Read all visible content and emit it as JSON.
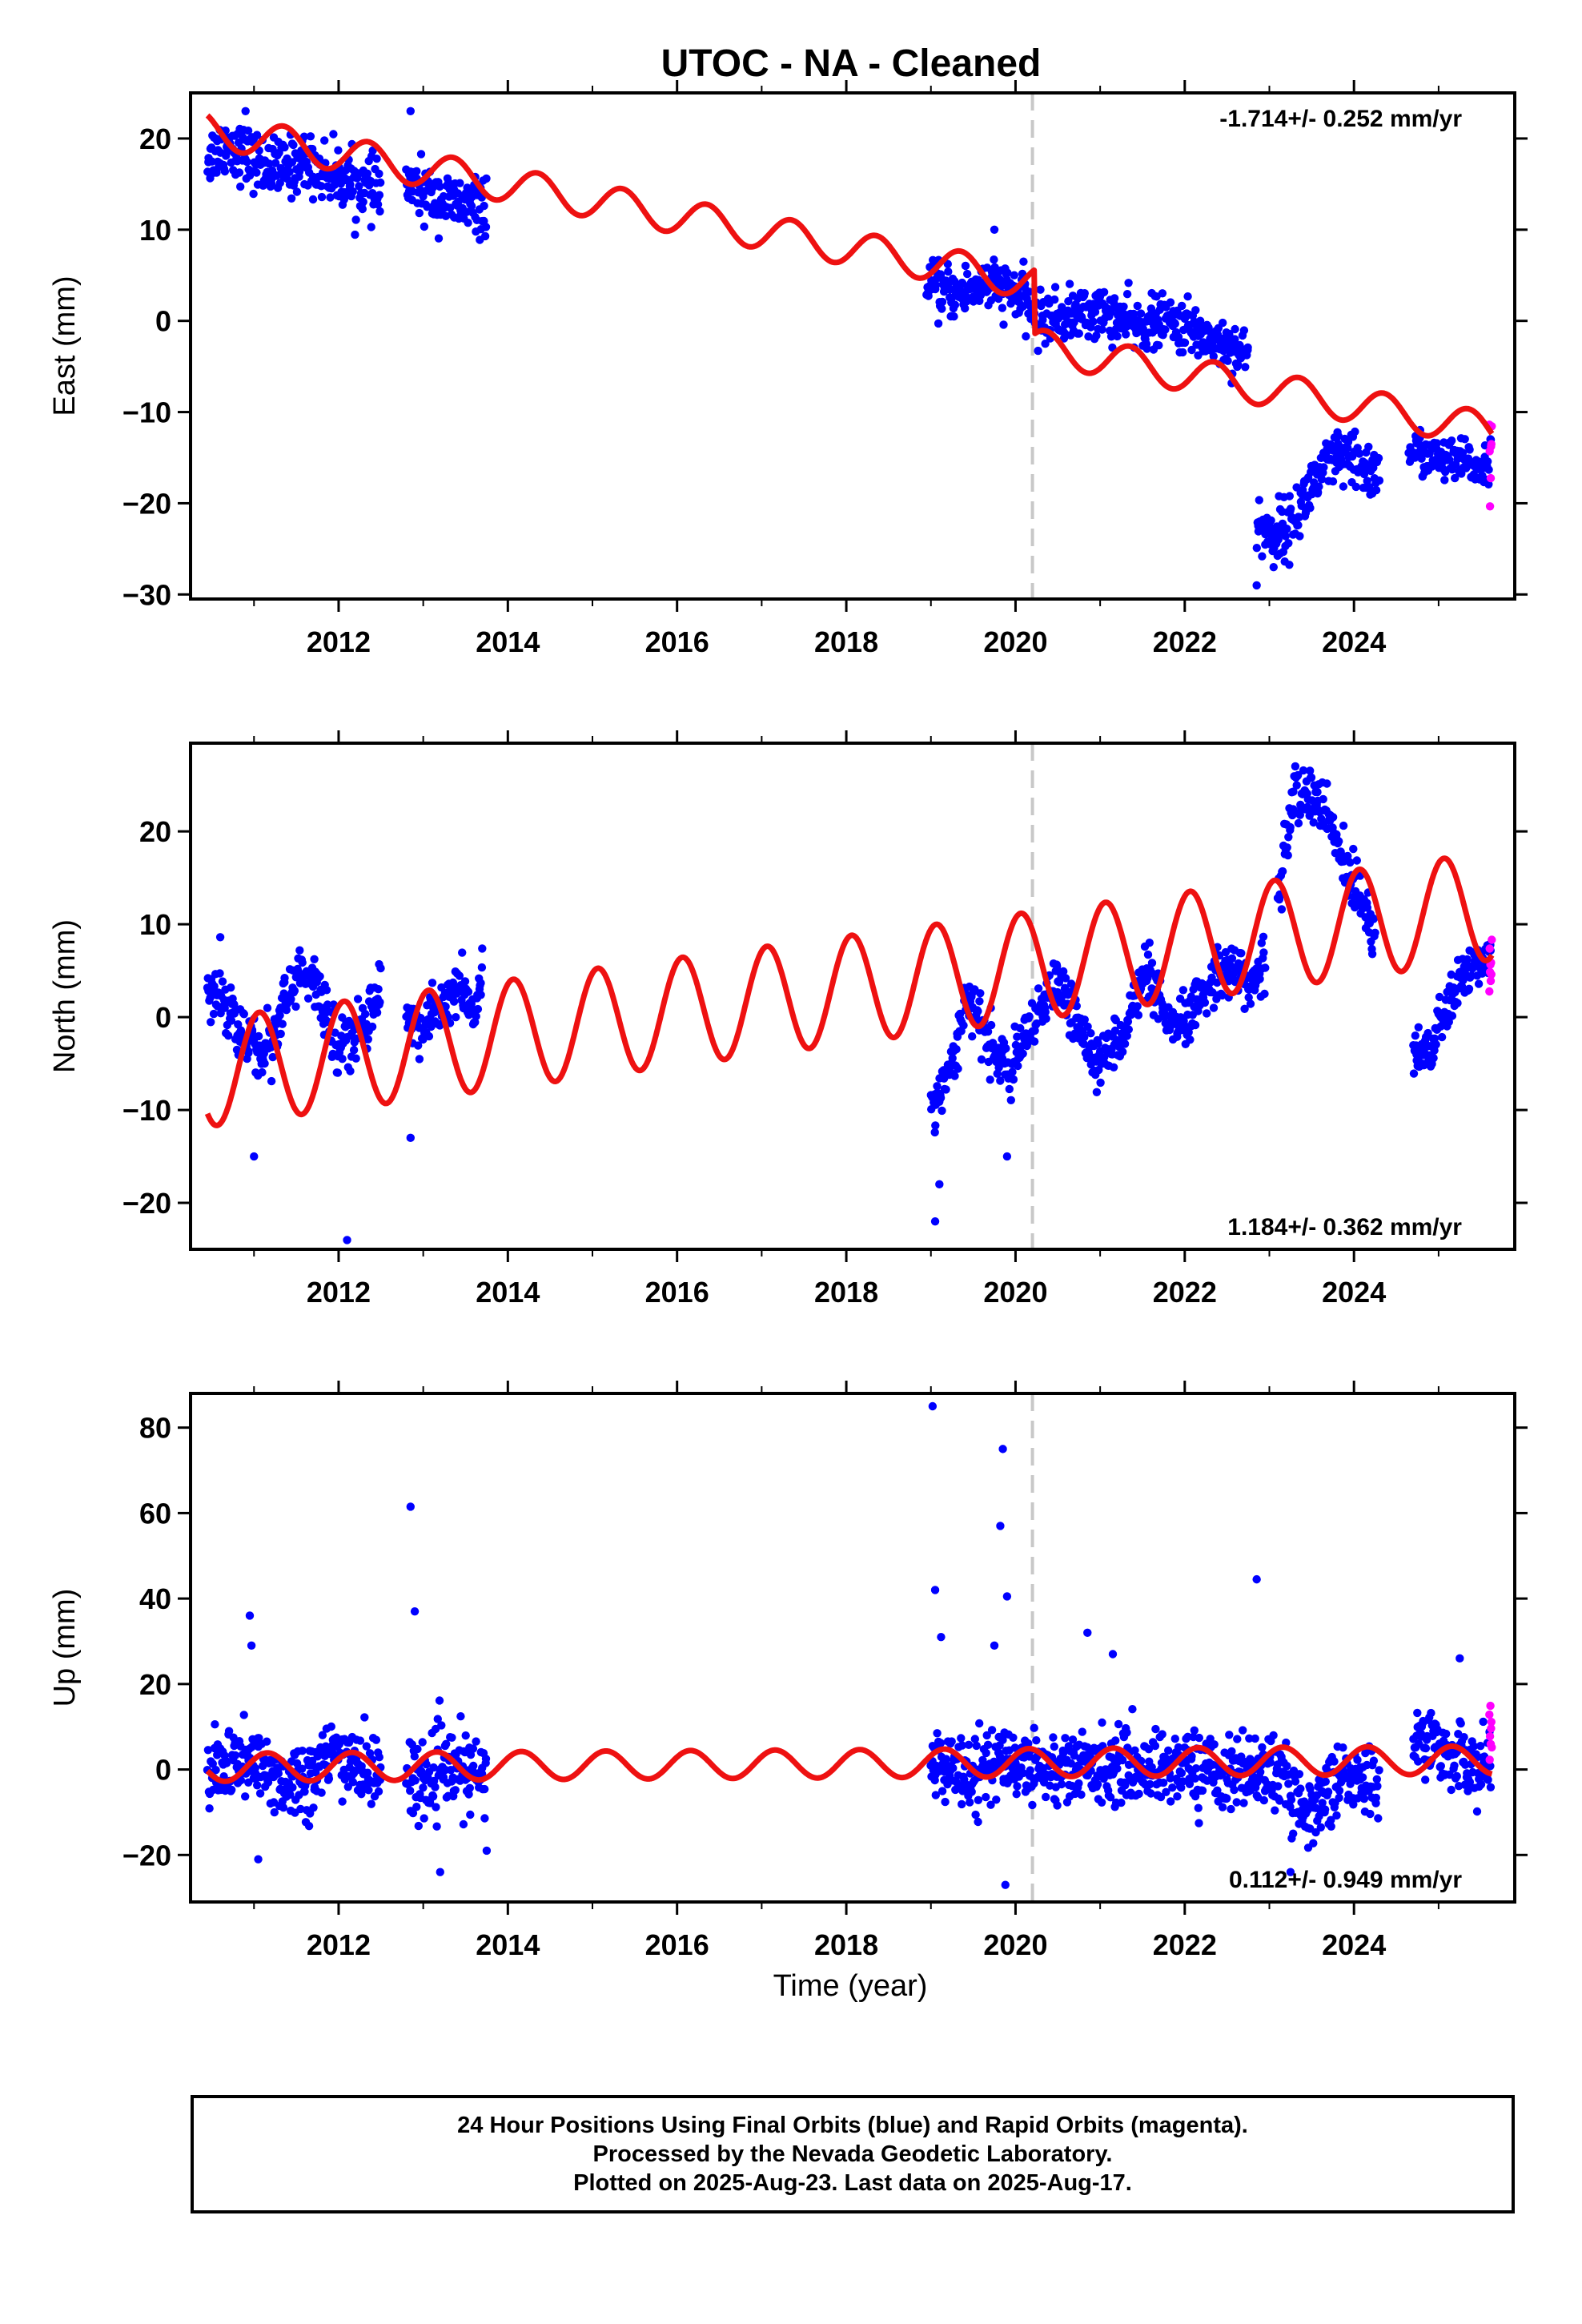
{
  "title": "UTOC  - NA - Cleaned",
  "xlabel": "Time (year)",
  "colors": {
    "final": "#0000ff",
    "rapid": "#ff00ff",
    "model": "#ee1111",
    "event_line": "#c8c8c8",
    "frame": "#000000"
  },
  "chart_data": [
    {
      "type": "scatter",
      "name": "east",
      "ylabel": "East (mm)",
      "rate": "-1.714+/- 0.252 mm/yr",
      "rate_position": "top-right",
      "xlim": [
        2010.25,
        2025.9
      ],
      "ylim": [
        -30.5,
        25
      ],
      "xticks": [
        2012,
        2014,
        2016,
        2018,
        2020,
        2022,
        2024
      ],
      "yticks": [
        -30,
        -20,
        -10,
        0,
        10,
        20
      ],
      "event_lines": [
        2020.2
      ],
      "final_segments": [
        {
          "x": [
            2010.45,
            2010.7,
            2011.0,
            2011.3,
            2011.6,
            2011.9,
            2012.2,
            2012.5
          ],
          "y": [
            18,
            19.5,
            17.5,
            16.5,
            17.5,
            16,
            15,
            14
          ],
          "spread": 1.6
        },
        {
          "x": [
            2012.8,
            2013.0,
            2013.3,
            2013.6,
            2013.75
          ],
          "y": [
            15,
            14,
            13,
            12.5,
            12.5
          ],
          "spread": 1.5
        },
        {
          "x": [
            2018.95,
            2019.3,
            2019.6,
            2019.9,
            2020.2
          ],
          "y": [
            3.5,
            3,
            4,
            3.5,
            1.5
          ],
          "spread": 1.4
        },
        {
          "x": [
            2020.22,
            2020.6,
            2021.0,
            2021.4,
            2021.8,
            2022.2,
            2022.6,
            2022.75
          ],
          "y": [
            0,
            0.5,
            1,
            -0.5,
            0,
            -1.5,
            -3,
            -4
          ],
          "spread": 1.4
        },
        {
          "x": [
            2022.85,
            2023.0,
            2023.25,
            2023.5,
            2023.8,
            2024.1,
            2024.3
          ],
          "y": [
            -22,
            -23.5,
            -22.5,
            -18,
            -15,
            -16,
            -17
          ],
          "spread": 1.6
        },
        {
          "x": [
            2024.65,
            2024.9,
            2025.2,
            2025.5,
            2025.62
          ],
          "y": [
            -14,
            -15,
            -15.5,
            -16,
            -15
          ],
          "spread": 1.2
        }
      ],
      "rapid": {
        "x": [
          2025.6,
          2025.63
        ],
        "y": [
          -15.5,
          -14
        ],
        "spread": 2.0
      },
      "model": {
        "offset": 21.0,
        "rate": -1.714,
        "t0": 2010.45,
        "amp": 1.9,
        "phase": 2.2,
        "steps": [
          {
            "x": 2020.22,
            "dy": -7
          }
        ]
      },
      "outliers": {
        "x": [
          2010.9,
          2012.85,
          2019.75,
          2022.85,
          2023.05
        ],
        "y": [
          23,
          23,
          10,
          -29,
          -27
        ]
      }
    },
    {
      "type": "scatter",
      "name": "north",
      "ylabel": "North (mm)",
      "rate": "1.184+/- 0.362 mm/yr",
      "rate_position": "bottom-right",
      "xlim": [
        2010.25,
        2025.9
      ],
      "ylim": [
        -25,
        29.5
      ],
      "xticks": [
        2012,
        2014,
        2016,
        2018,
        2020,
        2022,
        2024
      ],
      "yticks": [
        -20,
        -10,
        0,
        10,
        20
      ],
      "event_lines": [
        2020.2
      ],
      "final_segments": [
        {
          "x": [
            2010.45,
            2010.6,
            2010.85,
            2011.1,
            2011.3,
            2011.55,
            2011.8,
            2012.0,
            2012.2,
            2012.4,
            2012.5
          ],
          "y": [
            3,
            3,
            -2,
            -4,
            0,
            5,
            2,
            -3,
            -2,
            1,
            4
          ],
          "spread": 1.6
        },
        {
          "x": [
            2012.8,
            2013.0,
            2013.2,
            2013.4,
            2013.6,
            2013.7
          ],
          "y": [
            0,
            -1.5,
            1,
            3,
            0.5,
            4
          ],
          "spread": 1.4
        },
        {
          "x": [
            2019.0,
            2019.2,
            2019.45,
            2019.7,
            2019.95,
            2020.2
          ],
          "y": [
            -10,
            -6,
            2,
            -3,
            -6,
            -1
          ],
          "spread": 1.4
        },
        {
          "x": [
            2020.22,
            2020.5,
            2020.75,
            2021.0,
            2021.3,
            2021.55,
            2021.8,
            2022.0,
            2022.3,
            2022.55,
            2022.75,
            2022.95
          ],
          "y": [
            -1,
            4,
            -1,
            -5,
            -1,
            5,
            -1,
            -1,
            4,
            6,
            3,
            6
          ],
          "spread": 1.4
        },
        {
          "x": [
            2023.1,
            2023.3,
            2023.5,
            2023.7,
            2023.9,
            2024.1,
            2024.25
          ],
          "y": [
            13,
            24,
            24,
            21,
            16,
            13,
            9
          ],
          "spread": 1.6
        },
        {
          "x": [
            2024.7,
            2024.9,
            2025.1,
            2025.35,
            2025.62
          ],
          "y": [
            -3,
            -4,
            1,
            5,
            7
          ],
          "spread": 1.3
        }
      ],
      "rapid": {
        "x": [
          2025.6,
          2025.63
        ],
        "y": [
          4,
          6
        ],
        "spread": 2.0
      },
      "model": {
        "offset": -6.0,
        "rate": 1.184,
        "t0": 2010.45,
        "amp": 5.8,
        "phase": 4.0,
        "steps": []
      },
      "outliers": {
        "x": [
          2011.0,
          2012.1,
          2012.85,
          2019.05,
          2019.1,
          2019.9
        ],
        "y": [
          -15,
          -24,
          -13,
          -22,
          -18,
          -15
        ]
      }
    },
    {
      "type": "scatter",
      "name": "up",
      "ylabel": "Up (mm)",
      "rate": "0.112+/- 0.949 mm/yr",
      "rate_position": "bottom-right",
      "xlim": [
        2010.25,
        2025.9
      ],
      "ylim": [
        -31,
        88
      ],
      "xticks": [
        2012,
        2014,
        2016,
        2018,
        2020,
        2022,
        2024
      ],
      "yticks": [
        -20,
        0,
        20,
        40,
        60,
        80
      ],
      "event_lines": [
        2020.2
      ],
      "final_segments": [
        {
          "x": [
            2010.45,
            2010.8,
            2011.1,
            2011.4,
            2011.7,
            2012.0,
            2012.3,
            2012.5
          ],
          "y": [
            -2,
            2,
            0,
            -3,
            -1,
            4,
            0,
            -2
          ],
          "spread": 4.5
        },
        {
          "x": [
            2012.8,
            2013.0,
            2013.3,
            2013.75
          ],
          "y": [
            0,
            -3,
            0,
            -2
          ],
          "spread": 4.5
        },
        {
          "x": [
            2019.0,
            2019.5,
            2020.0,
            2020.5,
            2021.0,
            2021.5,
            2022.0,
            2022.5,
            2023.0,
            2023.3,
            2023.5,
            2023.8,
            2024.1,
            2024.3
          ],
          "y": [
            1,
            0,
            2,
            0,
            1,
            0,
            1,
            -1,
            0,
            -6,
            -10,
            -2,
            -3,
            -3
          ],
          "spread": 4.2
        },
        {
          "x": [
            2024.7,
            2025.0,
            2025.3,
            2025.62
          ],
          "y": [
            8,
            5,
            2,
            0
          ],
          "spread": 3.8
        }
      ],
      "rapid": {
        "x": [
          2025.6,
          2025.63
        ],
        "y": [
          4,
          8
        ],
        "spread": 4.0
      },
      "model": {
        "offset": 0.5,
        "rate": 0.112,
        "t0": 2010.45,
        "amp": 3.3,
        "phase": 3.4,
        "steps": []
      },
      "outliers": {
        "x": [
          2010.95,
          2010.97,
          2011.05,
          2012.85,
          2012.9,
          2013.2,
          2013.75,
          2019.02,
          2019.05,
          2019.12,
          2019.75,
          2019.82,
          2019.85,
          2019.9,
          2020.85,
          2021.15,
          2022.85,
          2023.25,
          2025.25,
          2019.88
        ],
        "y": [
          36,
          29,
          -21,
          61.5,
          37,
          -24,
          -19,
          85,
          42,
          31,
          29,
          57,
          75,
          40.5,
          32,
          27,
          44.5,
          -24,
          26,
          -27
        ]
      }
    }
  ],
  "footer": {
    "line1": "24 Hour Positions Using Final Orbits (blue) and Rapid Orbits (magenta).",
    "line2": "Processed by the Nevada Geodetic Laboratory.",
    "line3": "Plotted on 2025-Aug-23. Last data on 2025-Aug-17."
  }
}
